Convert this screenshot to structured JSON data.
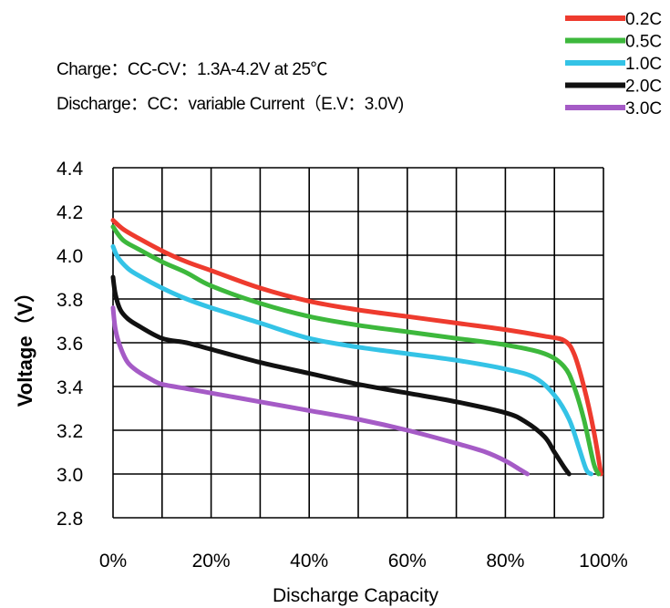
{
  "notes": {
    "line1": "Charge：CC-CV：1.3A-4.2V at 25℃",
    "line2": "Discharge：CC：variable Current（E.V：3.0V)"
  },
  "chart_data": {
    "type": "line",
    "title": "",
    "xlabel": "Discharge Capacity",
    "ylabel": "Voltage（V）",
    "xlim": [
      0,
      100
    ],
    "ylim": [
      2.8,
      4.4
    ],
    "x_ticks": [
      0,
      20,
      40,
      60,
      80,
      100
    ],
    "x_tick_labels": [
      "0%",
      "20%",
      "40%",
      "60%",
      "80%",
      "100%"
    ],
    "x_minor_gridlines": [
      0,
      10,
      20,
      30,
      40,
      50,
      60,
      70,
      80,
      90,
      100
    ],
    "y_ticks": [
      2.8,
      3.0,
      3.2,
      3.4,
      3.6,
      3.8,
      4.0,
      4.2,
      4.4
    ],
    "y_tick_labels": [
      "2.8",
      "3.0",
      "3.2",
      "3.4",
      "3.6",
      "3.8",
      "4.0",
      "4.2",
      "4.4"
    ],
    "grid": true,
    "legend_position": "top-right",
    "series": [
      {
        "name": "0.2C",
        "color": "#ee3b2e",
        "points": [
          [
            0,
            4.16
          ],
          [
            2,
            4.12
          ],
          [
            5,
            4.08
          ],
          [
            10,
            4.02
          ],
          [
            15,
            3.97
          ],
          [
            20,
            3.93
          ],
          [
            30,
            3.85
          ],
          [
            40,
            3.79
          ],
          [
            50,
            3.75
          ],
          [
            60,
            3.72
          ],
          [
            70,
            3.69
          ],
          [
            80,
            3.66
          ],
          [
            88,
            3.63
          ],
          [
            92,
            3.61
          ],
          [
            94,
            3.55
          ],
          [
            96,
            3.4
          ],
          [
            98,
            3.2
          ],
          [
            99.5,
            3.0
          ]
        ]
      },
      {
        "name": "0.5C",
        "color": "#3db83c",
        "points": [
          [
            0,
            4.13
          ],
          [
            2,
            4.07
          ],
          [
            5,
            4.03
          ],
          [
            10,
            3.97
          ],
          [
            15,
            3.92
          ],
          [
            20,
            3.86
          ],
          [
            30,
            3.78
          ],
          [
            40,
            3.72
          ],
          [
            50,
            3.68
          ],
          [
            60,
            3.65
          ],
          [
            70,
            3.62
          ],
          [
            80,
            3.59
          ],
          [
            88,
            3.55
          ],
          [
            92,
            3.49
          ],
          [
            94,
            3.4
          ],
          [
            96,
            3.25
          ],
          [
            98,
            3.05
          ],
          [
            99,
            3.0
          ]
        ]
      },
      {
        "name": "1.0C",
        "color": "#34c3e6",
        "points": [
          [
            0,
            4.04
          ],
          [
            1,
            3.99
          ],
          [
            3,
            3.94
          ],
          [
            5,
            3.91
          ],
          [
            10,
            3.85
          ],
          [
            15,
            3.8
          ],
          [
            20,
            3.76
          ],
          [
            30,
            3.69
          ],
          [
            40,
            3.62
          ],
          [
            50,
            3.58
          ],
          [
            60,
            3.55
          ],
          [
            70,
            3.52
          ],
          [
            80,
            3.48
          ],
          [
            86,
            3.44
          ],
          [
            90,
            3.36
          ],
          [
            93,
            3.25
          ],
          [
            95,
            3.12
          ],
          [
            96.5,
            3.02
          ],
          [
            97.5,
            3.0
          ]
        ]
      },
      {
        "name": "2.0C",
        "color": "#111111",
        "points": [
          [
            0,
            3.9
          ],
          [
            0.5,
            3.82
          ],
          [
            1.5,
            3.75
          ],
          [
            3,
            3.71
          ],
          [
            5,
            3.68
          ],
          [
            10,
            3.62
          ],
          [
            15,
            3.6
          ],
          [
            20,
            3.57
          ],
          [
            30,
            3.51
          ],
          [
            40,
            3.46
          ],
          [
            50,
            3.41
          ],
          [
            60,
            3.37
          ],
          [
            70,
            3.33
          ],
          [
            80,
            3.28
          ],
          [
            84,
            3.24
          ],
          [
            88,
            3.17
          ],
          [
            90,
            3.1
          ],
          [
            92,
            3.03
          ],
          [
            93,
            3.0
          ]
        ]
      },
      {
        "name": "3.0C",
        "color": "#a55bc6",
        "points": [
          [
            0,
            3.76
          ],
          [
            0.5,
            3.66
          ],
          [
            1.5,
            3.58
          ],
          [
            3,
            3.51
          ],
          [
            5,
            3.47
          ],
          [
            8,
            3.43
          ],
          [
            10,
            3.41
          ],
          [
            15,
            3.39
          ],
          [
            20,
            3.37
          ],
          [
            30,
            3.33
          ],
          [
            40,
            3.29
          ],
          [
            50,
            3.25
          ],
          [
            60,
            3.2
          ],
          [
            70,
            3.14
          ],
          [
            76,
            3.1
          ],
          [
            80,
            3.06
          ],
          [
            83,
            3.02
          ],
          [
            84.5,
            3.0
          ]
        ]
      }
    ]
  }
}
